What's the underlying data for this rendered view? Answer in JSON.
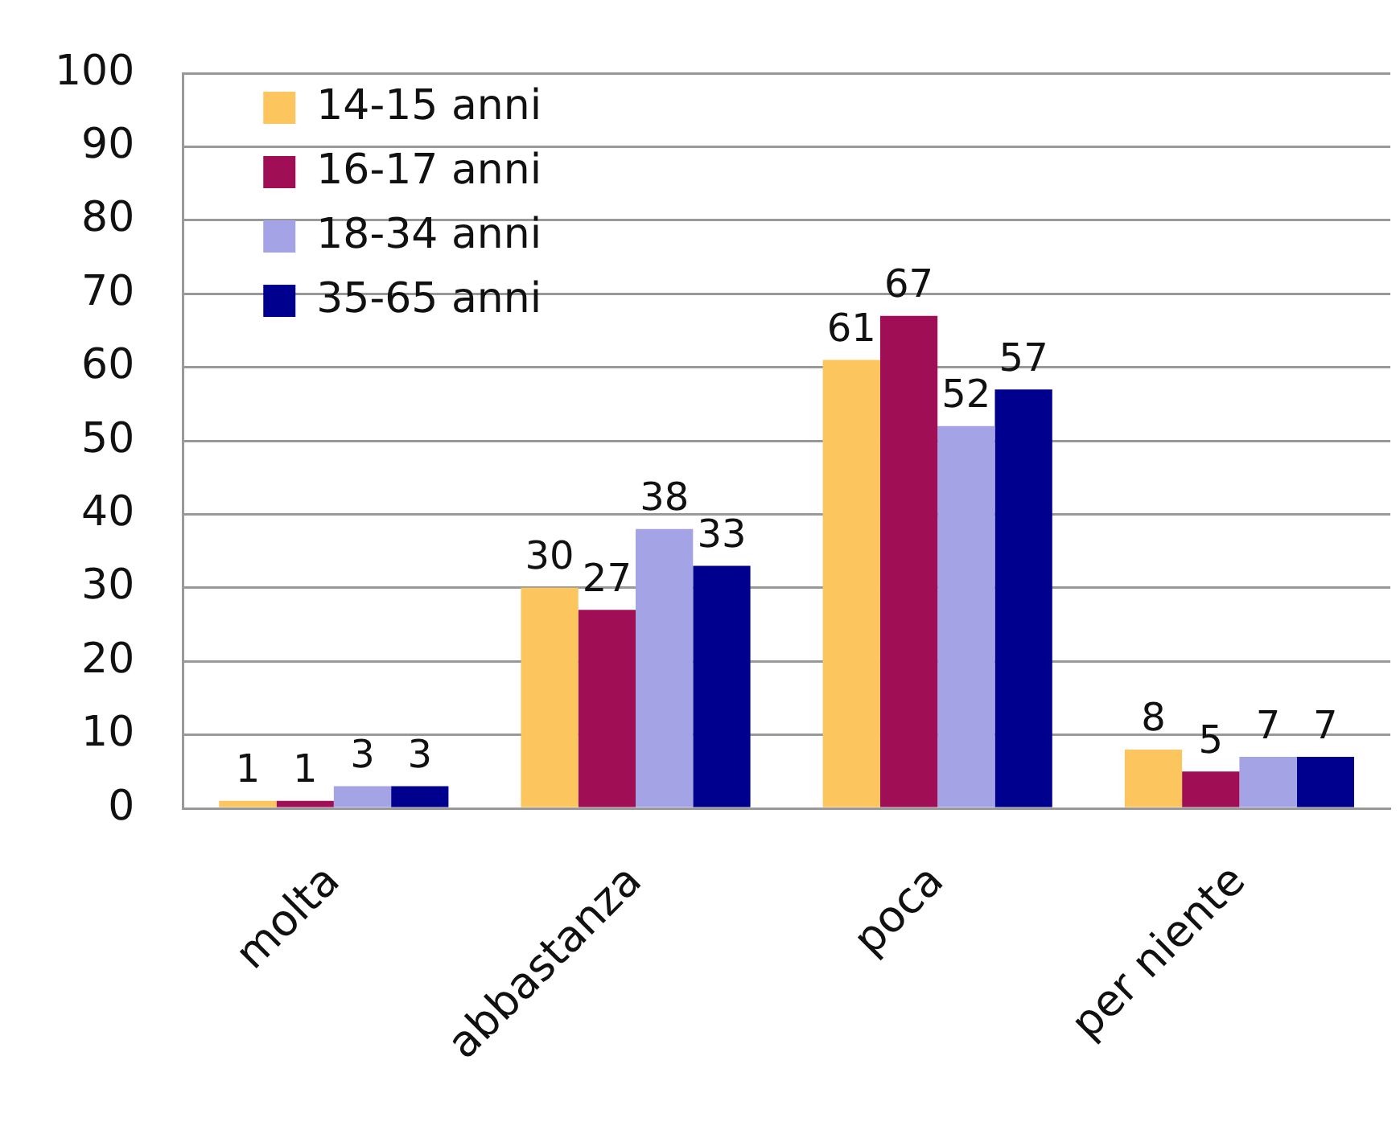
{
  "chart_data": {
    "type": "bar",
    "categories": [
      "molta",
      "abbastanza",
      "poca",
      "per niente"
    ],
    "series": [
      {
        "name": "14-15 anni",
        "color": "#fcc55e",
        "values": [
          1,
          30,
          61,
          8
        ]
      },
      {
        "name": "16-17 anni",
        "color": "#a00e56",
        "values": [
          1,
          27,
          67,
          5
        ]
      },
      {
        "name": "18-34 anni",
        "color": "#a3a3e6",
        "values": [
          3,
          38,
          52,
          7
        ]
      },
      {
        "name": "35-65 anni",
        "color": "#00008e",
        "values": [
          3,
          33,
          57,
          7
        ]
      }
    ],
    "ylim": [
      0,
      100
    ],
    "yticks": [
      0,
      10,
      20,
      30,
      40,
      50,
      60,
      70,
      80,
      90,
      100
    ],
    "grid": "y",
    "legend": "top left",
    "data_labels": true
  }
}
